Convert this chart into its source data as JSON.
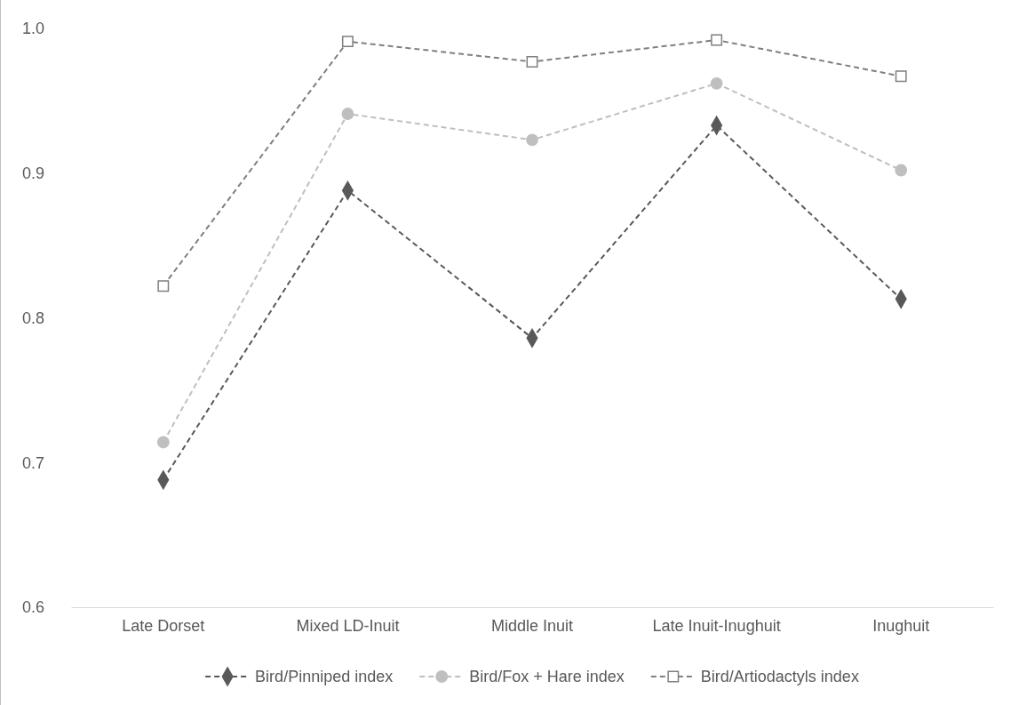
{
  "chart_data": {
    "type": "line",
    "categories": [
      "Late Dorset",
      "Mixed LD-Inuit",
      "Middle Inuit",
      "Late Inuit-Inughuit",
      "Inughuit"
    ],
    "series": [
      {
        "name": "Bird/Pinniped index",
        "color": "#595959",
        "marker": "diamond",
        "values": [
          0.688,
          0.888,
          0.786,
          0.933,
          0.813
        ]
      },
      {
        "name": "Bird/Fox + Hare index",
        "color": "#bfbfbf",
        "marker": "circle",
        "values": [
          0.714,
          0.941,
          0.923,
          0.962,
          0.902
        ]
      },
      {
        "name": "Bird/Artiodactyls index",
        "color": "#7f7f7f",
        "marker": "square",
        "values": [
          0.822,
          0.991,
          0.977,
          0.992,
          0.967
        ]
      }
    ],
    "ylim": [
      0.6,
      1.0
    ],
    "yticks": [
      {
        "value": 0.6,
        "label": "0.6"
      },
      {
        "value": 0.7,
        "label": "0.7"
      },
      {
        "value": 0.8,
        "label": "0.8"
      },
      {
        "value": 0.9,
        "label": "0.9"
      },
      {
        "value": 1.0,
        "label": "1.0"
      }
    ],
    "grid": false,
    "legend": "bottom",
    "line_style": "dashed"
  }
}
